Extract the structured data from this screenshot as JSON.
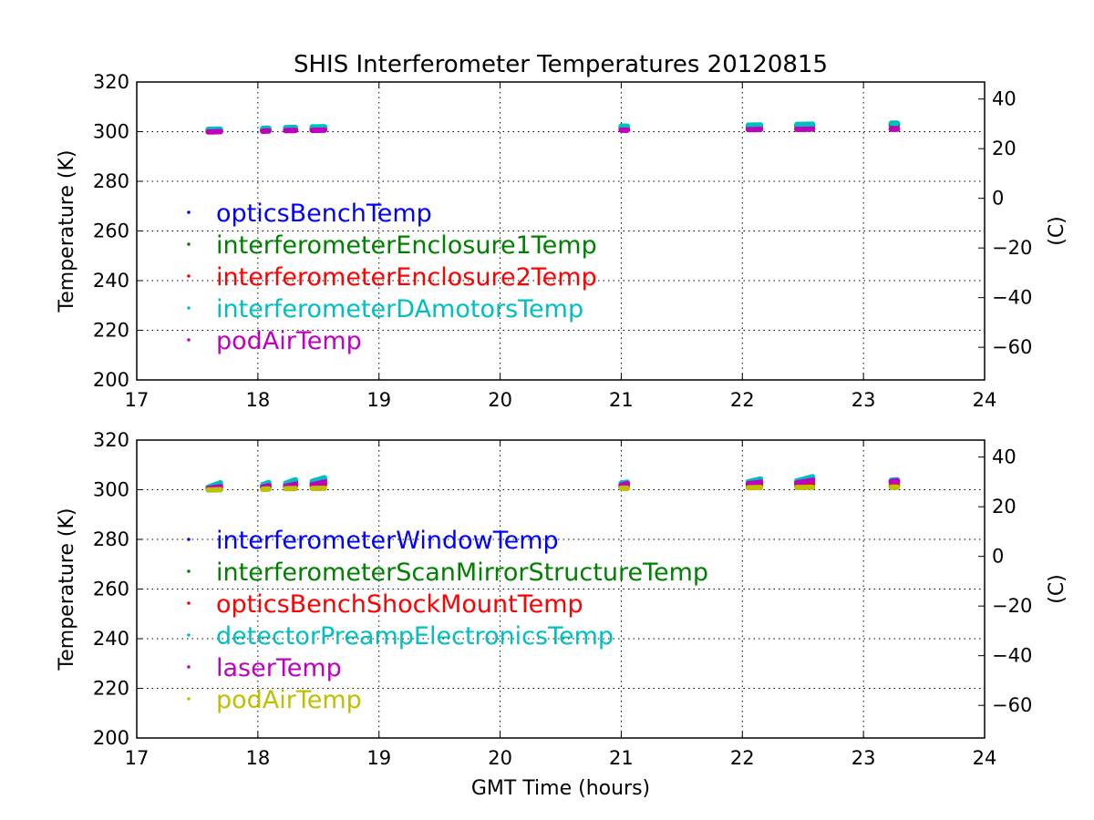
{
  "figure": {
    "title": "SHIS Interferometer Temperatures 20120815"
  },
  "chart_data": [
    {
      "type": "scatter",
      "xlabel": "",
      "ylabel": "Temperature (K)",
      "ylabel_right": "(C)",
      "xlim": [
        17,
        24
      ],
      "ylim": [
        200,
        320
      ],
      "ylim_right": [
        -73.15,
        46.85
      ],
      "xticks": [
        17,
        18,
        19,
        20,
        21,
        22,
        23,
        24
      ],
      "yticks": [
        200,
        220,
        240,
        260,
        280,
        300,
        320
      ],
      "yticks_right": [
        -60,
        -40,
        -20,
        0,
        20,
        40
      ],
      "grid": true,
      "legend_position": "center-left",
      "series": [
        {
          "name": "opticsBenchTemp",
          "color": "#0000ff",
          "segments": [
            [
              17.59,
              17.69,
              300.6,
              300.7
            ],
            [
              18.04,
              18.09,
              301.0,
              301.1
            ],
            [
              18.23,
              18.31,
              301.3,
              301.4
            ],
            [
              18.45,
              18.55,
              301.6,
              301.7
            ],
            [
              21.0,
              21.05,
              301.9,
              301.9
            ],
            [
              22.05,
              22.15,
              302.2,
              302.3
            ],
            [
              22.45,
              22.58,
              302.5,
              302.6
            ],
            [
              23.23,
              23.28,
              303.0,
              303.0
            ]
          ]
        },
        {
          "name": "interferometerEnclosure1Temp",
          "color": "#008000",
          "segments": [
            [
              17.59,
              17.69,
              300.2,
              300.3
            ],
            [
              18.04,
              18.09,
              300.7,
              300.8
            ],
            [
              18.23,
              18.31,
              301.0,
              301.1
            ],
            [
              18.45,
              18.55,
              301.2,
              301.3
            ],
            [
              21.0,
              21.05,
              301.6,
              301.6
            ],
            [
              22.05,
              22.15,
              301.9,
              302.0
            ],
            [
              22.45,
              22.58,
              302.2,
              302.3
            ],
            [
              23.23,
              23.28,
              302.6,
              302.6
            ]
          ]
        },
        {
          "name": "interferometerEnclosure2Temp",
          "color": "#ff0000",
          "segments": [
            [
              17.59,
              17.69,
              300.0,
              300.1
            ],
            [
              18.04,
              18.09,
              300.3,
              300.4
            ],
            [
              18.23,
              18.31,
              300.5,
              300.6
            ],
            [
              18.45,
              18.55,
              300.7,
              300.8
            ],
            [
              21.0,
              21.05,
              300.8,
              300.8
            ],
            [
              22.05,
              22.15,
              301.0,
              301.1
            ],
            [
              22.45,
              22.58,
              301.1,
              301.2
            ],
            [
              23.23,
              23.28,
              301.2,
              301.2
            ]
          ]
        },
        {
          "name": "interferometerDAmotorsTemp",
          "color": "#00bfbf",
          "segments": [
            [
              17.59,
              17.69,
              300.9,
              301.0
            ],
            [
              18.04,
              18.09,
              301.3,
              301.4
            ],
            [
              18.23,
              18.31,
              301.6,
              301.7
            ],
            [
              18.45,
              18.55,
              301.9,
              302.0
            ],
            [
              21.0,
              21.05,
              302.2,
              302.2
            ],
            [
              22.05,
              22.15,
              302.6,
              302.7
            ],
            [
              22.45,
              22.58,
              302.9,
              303.0
            ],
            [
              23.23,
              23.28,
              303.4,
              303.4
            ]
          ]
        },
        {
          "name": "podAirTemp",
          "color": "#bf00bf",
          "segments": [
            [
              17.59,
              17.69,
              299.9,
              300.0
            ],
            [
              18.04,
              18.09,
              300.2,
              300.3
            ],
            [
              18.23,
              18.31,
              300.4,
              300.5
            ],
            [
              18.45,
              18.55,
              300.5,
              300.6
            ],
            [
              21.0,
              21.05,
              300.6,
              300.6
            ],
            [
              22.05,
              22.15,
              300.8,
              300.9
            ],
            [
              22.45,
              22.58,
              300.9,
              301.0
            ],
            [
              23.23,
              23.28,
              301.0,
              301.0
            ]
          ]
        }
      ]
    },
    {
      "type": "scatter",
      "xlabel": "GMT Time (hours)",
      "ylabel": "Temperature (K)",
      "ylabel_right": "(C)",
      "xlim": [
        17,
        24
      ],
      "ylim": [
        200,
        320
      ],
      "ylim_right": [
        -73.15,
        46.85
      ],
      "xticks": [
        17,
        18,
        19,
        20,
        21,
        22,
        23,
        24
      ],
      "yticks": [
        200,
        220,
        240,
        260,
        280,
        300,
        320
      ],
      "yticks_right": [
        -60,
        -40,
        -20,
        0,
        20,
        40
      ],
      "grid": true,
      "legend_position": "center-left",
      "series": [
        {
          "name": "interferometerWindowTemp",
          "color": "#0000ff",
          "segments": [
            [
              17.59,
              17.69,
              300.6,
              302.0
            ],
            [
              18.04,
              18.09,
              301.5,
              302.2
            ],
            [
              18.23,
              18.31,
              302.0,
              303.2
            ],
            [
              18.45,
              18.55,
              302.8,
              304.0
            ],
            [
              21.0,
              21.05,
              302.3,
              302.6
            ],
            [
              22.05,
              22.15,
              302.8,
              303.5
            ],
            [
              22.45,
              22.58,
              303.2,
              304.5
            ],
            [
              23.23,
              23.28,
              303.5,
              303.6
            ]
          ]
        },
        {
          "name": "interferometerScanMirrorStructureTemp",
          "color": "#008000",
          "segments": [
            [
              17.59,
              17.69,
              300.4,
              301.0
            ],
            [
              18.04,
              18.09,
              300.9,
              301.2
            ],
            [
              18.23,
              18.31,
              301.2,
              301.6
            ],
            [
              18.45,
              18.55,
              301.6,
              302.0
            ],
            [
              21.0,
              21.05,
              301.0,
              301.2
            ],
            [
              22.05,
              22.15,
              301.4,
              301.7
            ],
            [
              22.45,
              22.58,
              301.7,
              302.1
            ],
            [
              23.23,
              23.28,
              301.6,
              301.7
            ]
          ]
        },
        {
          "name": "opticsBenchShockMountTemp",
          "color": "#ff0000",
          "segments": [
            [
              17.59,
              17.69,
              300.3,
              300.8
            ],
            [
              18.04,
              18.09,
              300.8,
              301.2
            ],
            [
              18.23,
              18.31,
              301.1,
              301.7
            ],
            [
              18.45,
              18.55,
              301.6,
              302.4
            ],
            [
              21.0,
              21.05,
              301.6,
              302.0
            ],
            [
              22.05,
              22.15,
              302.0,
              302.6
            ],
            [
              22.45,
              22.58,
              302.3,
              303.2
            ],
            [
              23.23,
              23.28,
              302.9,
              303.0
            ]
          ]
        },
        {
          "name": "detectorPreampElectronicsTemp",
          "color": "#00bfbf",
          "segments": [
            [
              17.59,
              17.69,
              301.0,
              302.8
            ],
            [
              18.04,
              18.09,
              302.0,
              302.9
            ],
            [
              18.23,
              18.31,
              302.6,
              304.0
            ],
            [
              18.45,
              18.55,
              303.4,
              304.8
            ],
            [
              21.0,
              21.05,
              302.6,
              303.0
            ],
            [
              22.05,
              22.15,
              303.2,
              304.3
            ],
            [
              22.45,
              22.58,
              303.6,
              305.2
            ],
            [
              23.23,
              23.28,
              303.8,
              304.0
            ]
          ]
        },
        {
          "name": "laserTemp",
          "color": "#bf00bf",
          "segments": [
            [
              17.59,
              17.69,
              300.5,
              301.2
            ],
            [
              18.04,
              18.09,
              301.0,
              301.6
            ],
            [
              18.23,
              18.31,
              301.4,
              302.2
            ],
            [
              18.45,
              18.55,
              302.0,
              303.0
            ],
            [
              21.0,
              21.05,
              301.8,
              302.4
            ],
            [
              22.05,
              22.15,
              302.4,
              303.0
            ],
            [
              22.45,
              22.58,
              302.7,
              303.8
            ],
            [
              23.23,
              23.28,
              303.3,
              303.5
            ]
          ]
        },
        {
          "name": "podAirTemp",
          "color": "#bfbf00",
          "segments": [
            [
              17.59,
              17.69,
              299.9,
              300.0
            ],
            [
              18.04,
              18.09,
              300.2,
              300.3
            ],
            [
              18.23,
              18.31,
              300.4,
              300.5
            ],
            [
              18.45,
              18.55,
              300.5,
              300.6
            ],
            [
              21.0,
              21.05,
              300.6,
              300.6
            ],
            [
              22.05,
              22.15,
              300.8,
              300.9
            ],
            [
              22.45,
              22.58,
              300.9,
              301.0
            ],
            [
              23.23,
              23.28,
              301.0,
              301.0
            ]
          ]
        }
      ]
    }
  ]
}
